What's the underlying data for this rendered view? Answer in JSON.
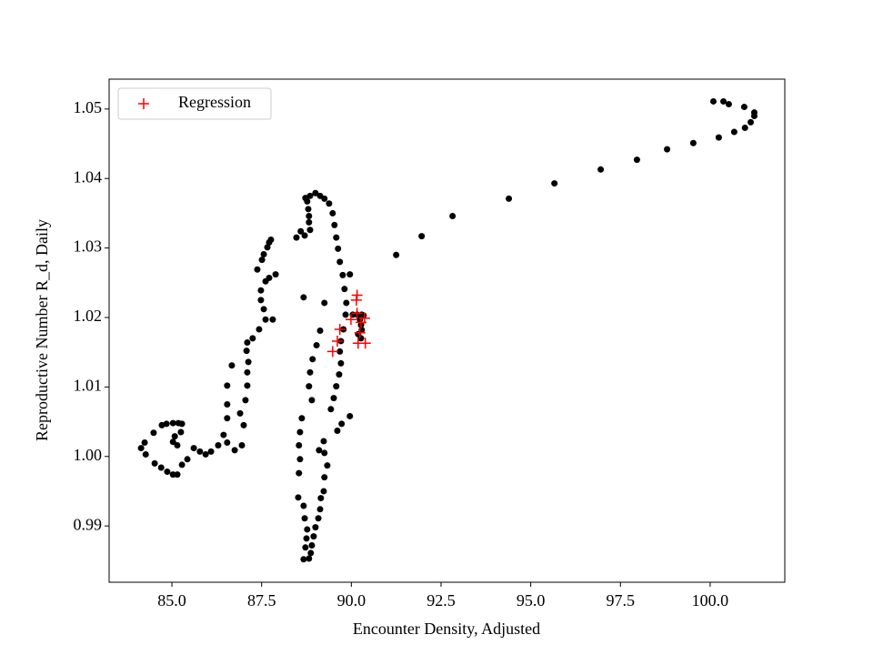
{
  "chart_data": {
    "type": "scatter",
    "xlabel": "Encounter Density, Adjusted",
    "ylabel": "Reproductive Number R_d, Daily",
    "xlim": [
      83.25,
      102.08
    ],
    "ylim": [
      0.9819,
      1.0543
    ],
    "xticks": [
      {
        "value": 85,
        "label": "85.0"
      },
      {
        "value": 87.5,
        "label": "87.5"
      },
      {
        "value": 90,
        "label": "90.0"
      },
      {
        "value": 92.5,
        "label": "92.5"
      },
      {
        "value": 95,
        "label": "95.0"
      },
      {
        "value": 97.5,
        "label": "97.5"
      },
      {
        "value": 100,
        "label": "100.0"
      }
    ],
    "yticks": [
      0.99,
      {
        "value": 1,
        "label": "1.00"
      },
      1.01,
      1.02,
      1.03,
      1.04,
      1.05
    ],
    "grid": false,
    "legend": "upper left",
    "series": [
      {
        "color": "#000000",
        "marker": "dot",
        "x": [
          100.09,
          100.37,
          100.52,
          100.95,
          101.23,
          101.23,
          101.13,
          100.97,
          100.67,
          100.24,
          99.53,
          98.8,
          97.96,
          96.95,
          95.66,
          94.39,
          92.82,
          91.96,
          91.25,
          89.96,
          89.0,
          89.13,
          89.25,
          89.38,
          89.48,
          89.53,
          89.58,
          89.63,
          89.68,
          89.76,
          89.81,
          89.86,
          89.84,
          90.04,
          90.16,
          90.29,
          90.34,
          90.24,
          90.27,
          90.29,
          90.27,
          90.19,
          89.78,
          89.71,
          89.68,
          89.71,
          89.66,
          89.58,
          89.51,
          89.43,
          89.96,
          89.73,
          89.61,
          89.13,
          89.03,
          88.92,
          88.85,
          88.82,
          88.9,
          88.62,
          88.57,
          88.54,
          88.57,
          88.54,
          88.52,
          88.67,
          88.7,
          88.77,
          88.75,
          88.72,
          88.67,
          88.82,
          88.87,
          88.9,
          88.95,
          89.0,
          89.08,
          89.13,
          89.15,
          89.23,
          89.25,
          89.33,
          89.25,
          89.1,
          89.23,
          88.77,
          88.8,
          88.82,
          88.82,
          88.85,
          88.7,
          88.47,
          88.67,
          89.25,
          88.85,
          88.72,
          87.89,
          87.71,
          87.61,
          87.48,
          87.48,
          87.56,
          87.61,
          87.81,
          87.43,
          87.25,
          87.1,
          87.08,
          87.13,
          87.1,
          87.1,
          87.05,
          86.9,
          87.0,
          86.95,
          86.75,
          86.54,
          86.44,
          86.54,
          86.54,
          86.54,
          86.67,
          86.29,
          86.09,
          85.94,
          85.78,
          85.61,
          85.43,
          85.28,
          85.15,
          85.03,
          84.87,
          84.7,
          84.52,
          84.27,
          84.14,
          84.24,
          84.49,
          84.72,
          84.85,
          85.03,
          85.18,
          85.28,
          85.25,
          85.08,
          85.03,
          85.15,
          87.38,
          87.51,
          87.56,
          87.66,
          87.71,
          87.76,
          88.59
        ],
        "y": [
          1.0511,
          1.0511,
          1.0507,
          1.0503,
          1.0495,
          1.049,
          1.0481,
          1.0473,
          1.0467,
          1.0459,
          1.0451,
          1.0442,
          1.0427,
          1.0413,
          1.0393,
          1.0371,
          1.0346,
          1.0317,
          1.029,
          1.0262,
          1.0379,
          1.0375,
          1.0371,
          1.0364,
          1.035,
          1.0333,
          1.0315,
          1.0299,
          1.028,
          1.0261,
          1.0241,
          1.0221,
          1.0204,
          1.0204,
          1.0204,
          1.0204,
          1.0203,
          1.0197,
          1.0189,
          1.0182,
          1.017,
          1.0176,
          1.0183,
          1.0166,
          1.0151,
          1.0134,
          1.0118,
          1.0101,
          1.0084,
          1.0068,
          1.0058,
          1.0047,
          1.0037,
          1.0181,
          1.016,
          1.014,
          1.0121,
          1.0101,
          1.0081,
          1.0055,
          1.0035,
          1.0016,
          0.9996,
          0.9976,
          0.9941,
          0.9929,
          0.9911,
          0.9895,
          0.9882,
          0.9869,
          0.9852,
          0.9853,
          0.9861,
          0.9872,
          0.9885,
          0.9898,
          0.9911,
          0.9924,
          0.994,
          0.995,
          0.997,
          0.9987,
          1.0005,
          1.0009,
          1.0022,
          1.0367,
          1.0356,
          1.0346,
          1.0337,
          1.0326,
          1.0318,
          1.0315,
          1.0229,
          1.0221,
          1.0375,
          1.0372,
          1.0262,
          1.0257,
          1.0252,
          1.0239,
          1.0225,
          1.0212,
          1.0197,
          1.0197,
          1.0183,
          1.017,
          1.0164,
          1.0152,
          1.0136,
          1.0121,
          1.0102,
          1.0081,
          1.0062,
          1.0045,
          1.0016,
          1.0009,
          1.002,
          1.0031,
          1.0055,
          1.0075,
          1.0102,
          1.0131,
          1.0016,
          1.0007,
          1.0003,
          1.0007,
          1.0012,
          0.9996,
          0.9988,
          0.9974,
          0.9974,
          0.9978,
          0.9984,
          0.999,
          1.0003,
          1.0012,
          1.002,
          1.0034,
          1.0045,
          1.0047,
          1.0048,
          1.0048,
          1.0047,
          1.0035,
          1.0029,
          1.0021,
          1.0016,
          1.0269,
          1.0283,
          1.0291,
          1.0301,
          1.0308,
          1.0312,
          1.0324
        ]
      },
      {
        "name": "Regression",
        "color": "#ff0000",
        "marker": "plus",
        "x": [
          90.16,
          90.14,
          90.16,
          89.99,
          90.37,
          89.68,
          89.61,
          89.48,
          90.19,
          90.39,
          90.24,
          90.27
        ],
        "y": [
          1.0232,
          1.0225,
          1.0206,
          1.0197,
          1.0199,
          1.0183,
          1.0166,
          1.0151,
          1.0163,
          1.0163,
          1.0178,
          1.0193
        ]
      }
    ]
  }
}
